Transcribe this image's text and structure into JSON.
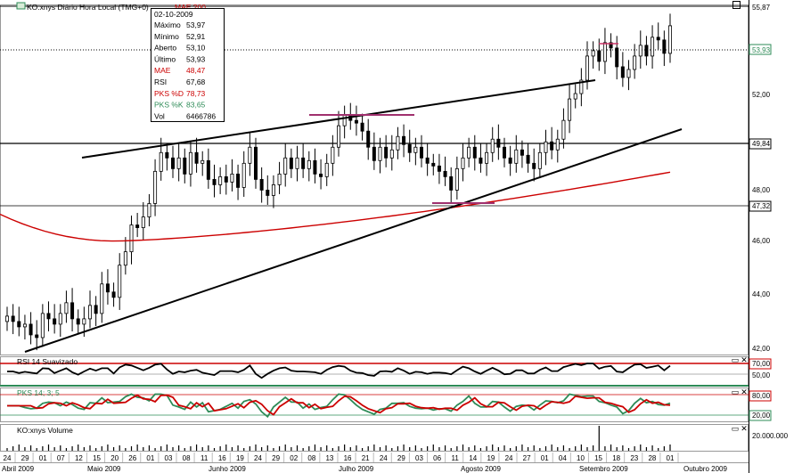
{
  "main_panel": {
    "title": "KO:xnys Diário Hora Local (TMG+0)",
    "ma_label": "MAE 200",
    "price_axis": {
      "ticks": [
        "55,87",
        "53,93",
        "52,00",
        "49,84",
        "48,00",
        "47,32",
        "46,00",
        "44,00",
        "42,00"
      ],
      "highlight_last": "53,93"
    },
    "legend": {
      "date": "02-10-2009",
      "rows": [
        {
          "label": "Máximo",
          "value": "53,97",
          "color": "#000000"
        },
        {
          "label": "Mínimo",
          "value": "52,91",
          "color": "#000000"
        },
        {
          "label": "Aberto",
          "value": "53,10",
          "color": "#000000"
        },
        {
          "label": "Último",
          "value": "53,93",
          "color": "#000000"
        },
        {
          "label": "MAE",
          "value": "48,47",
          "color": "#cc0000"
        },
        {
          "label": "RSI",
          "value": "67,68",
          "color": "#000000"
        },
        {
          "label": "PKS %D",
          "value": "78,73",
          "color": "#cc0000"
        },
        {
          "label": "PKS %K",
          "value": "83,65",
          "color": "#2e8b57"
        },
        {
          "label": "Vol",
          "value": "6466786",
          "color": "#000000"
        }
      ]
    }
  },
  "rsi_panel": {
    "title": "RSI 14 Suavizado",
    "ticks": [
      "70,00",
      "50,00"
    ]
  },
  "pks_panel": {
    "title": "PKS 14; 3; 5",
    "ticks": [
      "80,00",
      "20,00"
    ]
  },
  "volume_panel": {
    "title": "KO:xnys Volume",
    "ticks": [
      "20.000.000"
    ]
  },
  "time_axis": {
    "days": [
      "24",
      "29",
      "01",
      "07",
      "12",
      "15",
      "20",
      "26",
      "01",
      "03",
      "08",
      "11",
      "16",
      "19",
      "24",
      "29",
      "02",
      "08",
      "13",
      "16",
      "21",
      "24",
      "29",
      "03",
      "06",
      "11",
      "14",
      "19",
      "24",
      "27",
      "01",
      "04",
      "10",
      "15",
      "18",
      "23",
      "28",
      "01"
    ],
    "months": [
      "Abril 2009",
      "Maio 2009",
      "Junho 2009",
      "Julho 2009",
      "Agosto 2009",
      "Setembro 2009",
      "Outubro 2009"
    ]
  },
  "colors": {
    "candle_up": "#000000",
    "moving_average": "#cc0000",
    "rsi_line": "#000000",
    "pks_d": "#cc0000",
    "pks_k": "#2e8b57",
    "trendline": "#000000",
    "marker": "#a0306e"
  },
  "chart_data": [
    {
      "type": "candlestick",
      "x": [
        "2009-04-24",
        "2009-04-27",
        "2009-04-28",
        "2009-04-29",
        "2009-04-30",
        "2009-05-01",
        "2009-05-04",
        "2009-05-05",
        "2009-05-06",
        "2009-05-07",
        "2009-05-08",
        "2009-05-11",
        "2009-05-12",
        "2009-05-13",
        "2009-05-14",
        "2009-05-15",
        "2009-05-18",
        "2009-05-19",
        "2009-05-20",
        "2009-05-21",
        "2009-05-22",
        "2009-05-26",
        "2009-05-27",
        "2009-05-28",
        "2009-05-29",
        "2009-06-01",
        "2009-06-02",
        "2009-06-03",
        "2009-06-04",
        "2009-06-05",
        "2009-06-08",
        "2009-06-09",
        "2009-06-10",
        "2009-06-11",
        "2009-06-12",
        "2009-06-15",
        "2009-06-16",
        "2009-06-17",
        "2009-06-18",
        "2009-06-19",
        "2009-06-22",
        "2009-06-23",
        "2009-06-24",
        "2009-06-25",
        "2009-06-26",
        "2009-06-29",
        "2009-06-30",
        "2009-07-01",
        "2009-07-02",
        "2009-07-06",
        "2009-07-07",
        "2009-07-08",
        "2009-07-09",
        "2009-07-10",
        "2009-07-13",
        "2009-07-14",
        "2009-07-15",
        "2009-07-16",
        "2009-07-17",
        "2009-07-20",
        "2009-07-21",
        "2009-07-22",
        "2009-07-23",
        "2009-07-24",
        "2009-07-27",
        "2009-07-28",
        "2009-07-29",
        "2009-07-30",
        "2009-07-31",
        "2009-08-03",
        "2009-08-04",
        "2009-08-05",
        "2009-08-06",
        "2009-08-07",
        "2009-08-10",
        "2009-08-11",
        "2009-08-12",
        "2009-08-13",
        "2009-08-14",
        "2009-08-17",
        "2009-08-18",
        "2009-08-19",
        "2009-08-20",
        "2009-08-21",
        "2009-08-24",
        "2009-08-25",
        "2009-08-26",
        "2009-08-27",
        "2009-08-28",
        "2009-08-31",
        "2009-09-01",
        "2009-09-02",
        "2009-09-03",
        "2009-09-04",
        "2009-09-08",
        "2009-09-09",
        "2009-09-10",
        "2009-09-11",
        "2009-09-14",
        "2009-09-15",
        "2009-09-16",
        "2009-09-17",
        "2009-09-18",
        "2009-09-21",
        "2009-09-22",
        "2009-09-23",
        "2009-09-24",
        "2009-09-25",
        "2009-09-28",
        "2009-09-29",
        "2009-09-30",
        "2009-10-01",
        "2009-10-02"
      ],
      "close": [
        43.1,
        42.9,
        42.7,
        42.8,
        42.4,
        42.3,
        43.2,
        43.0,
        42.8,
        43.2,
        43.6,
        43.0,
        42.8,
        43.0,
        43.5,
        43.2,
        44.3,
        44.0,
        43.8,
        45.0,
        45.5,
        46.5,
        46.4,
        46.8,
        47.3,
        48.5,
        49.2,
        49.0,
        48.6,
        49.0,
        48.4,
        49.2,
        48.8,
        48.9,
        48.2,
        48.0,
        48.3,
        48.1,
        48.4,
        47.9,
        48.8,
        49.4,
        48.2,
        47.8,
        47.6,
        48.0,
        48.4,
        49.0,
        48.6,
        49.0,
        48.6,
        48.9,
        48.4,
        48.3,
        48.8,
        49.4,
        50.2,
        50.6,
        50.4,
        50.3,
        50.0,
        49.4,
        48.9,
        49.4,
        49.0,
        49.3,
        49.8,
        49.5,
        49.2,
        49.4,
        49.0,
        48.8,
        48.7,
        48.5,
        48.3,
        47.8,
        48.6,
        49.0,
        49.4,
        49.0,
        48.8,
        49.2,
        49.7,
        49.4,
        49.0,
        48.8,
        49.3,
        49.1,
        48.8,
        48.6,
        49.2,
        49.6,
        49.3,
        49.7,
        50.4,
        51.2,
        51.4,
        51.9,
        52.8,
        53.0,
        52.6,
        53.3,
        53.1,
        52.4,
        52.0,
        52.3,
        52.8,
        53.2,
        52.8,
        53.5,
        53.4,
        52.9,
        53.93
      ],
      "ma": {
        "name": "MAE 200",
        "start": 46.9,
        "min": 45.9,
        "end": 48.47
      }
    },
    {
      "type": "line",
      "name": "RSI 14 Suavizado",
      "ylim": [
        0,
        100
      ],
      "levels": [
        70,
        50
      ],
      "last": 67.68
    },
    {
      "type": "line",
      "name": "PKS 14; 3; 5",
      "ylim": [
        0,
        100
      ],
      "levels": [
        80,
        20
      ],
      "series": [
        {
          "name": "PKS %D",
          "last": 78.73
        },
        {
          "name": "PKS %K",
          "last": 83.65
        }
      ]
    },
    {
      "type": "bar",
      "name": "KO:xnys Volume",
      "last": 6466786
    }
  ]
}
